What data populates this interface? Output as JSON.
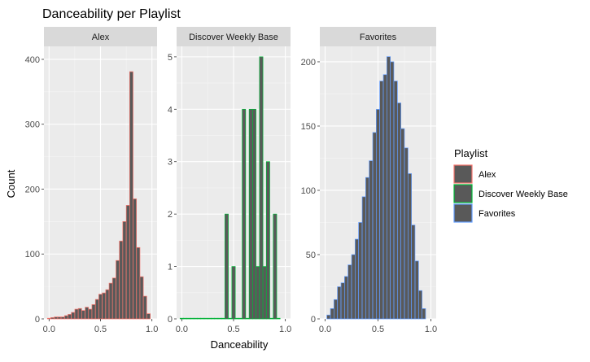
{
  "chart_data": {
    "type": "bar",
    "title": "Danceability per Playlist",
    "xlabel": "Danceability",
    "ylabel": "Count",
    "legend": {
      "title": "Playlist",
      "position": "right",
      "entries": [
        {
          "name": "Alex",
          "color": "#F8766D"
        },
        {
          "name": "Discover Weekly Base",
          "color": "#00BA38"
        },
        {
          "name": "Favorites",
          "color": "#619CFF"
        }
      ]
    },
    "bar_fill": "#595959",
    "bin_width": 0.033,
    "x_ticks": [
      "0.0",
      "0.5",
      "1.0"
    ],
    "x_tick_values": [
      0,
      0.5,
      1
    ],
    "facets": [
      {
        "name": "Alex",
        "color": "#F8766D",
        "ylim": [
          0,
          420
        ],
        "yticks": [
          0,
          100,
          200,
          300,
          400
        ],
        "x": [
          0.0,
          0.033,
          0.067,
          0.1,
          0.133,
          0.167,
          0.2,
          0.233,
          0.267,
          0.3,
          0.333,
          0.367,
          0.4,
          0.433,
          0.467,
          0.5,
          0.533,
          0.567,
          0.6,
          0.633,
          0.667,
          0.7,
          0.733,
          0.767,
          0.8,
          0.833,
          0.867,
          0.9,
          0.933,
          0.967
        ],
        "values": [
          1,
          2,
          3,
          3,
          3,
          5,
          7,
          10,
          15,
          16,
          13,
          18,
          15,
          22,
          30,
          38,
          40,
          45,
          55,
          63,
          90,
          120,
          150,
          175,
          381,
          185,
          110,
          65,
          35,
          8
        ]
      },
      {
        "name": "Discover Weekly Base",
        "color": "#00BA38",
        "ylim": [
          0,
          5.2
        ],
        "yticks": [
          0,
          1,
          2,
          3,
          4,
          5
        ],
        "x": [
          0.0,
          0.033,
          0.067,
          0.1,
          0.133,
          0.167,
          0.2,
          0.233,
          0.267,
          0.3,
          0.333,
          0.367,
          0.4,
          0.433,
          0.467,
          0.5,
          0.533,
          0.567,
          0.6,
          0.633,
          0.667,
          0.7,
          0.733,
          0.767,
          0.8,
          0.833,
          0.867,
          0.9,
          0.933
        ],
        "values": [
          0,
          0,
          0,
          0,
          0,
          0,
          0,
          0,
          0,
          0,
          0,
          0,
          0,
          2,
          0,
          1,
          0,
          0,
          4,
          0,
          4,
          4,
          1,
          5,
          1,
          3,
          0,
          2,
          0
        ]
      },
      {
        "name": "Favorites",
        "color": "#619CFF",
        "ylim": [
          0,
          212
        ],
        "yticks": [
          0,
          50,
          100,
          150,
          200
        ],
        "x": [
          0.033,
          0.067,
          0.1,
          0.133,
          0.167,
          0.2,
          0.233,
          0.267,
          0.3,
          0.333,
          0.367,
          0.4,
          0.433,
          0.467,
          0.5,
          0.533,
          0.567,
          0.6,
          0.633,
          0.667,
          0.7,
          0.733,
          0.767,
          0.8,
          0.833,
          0.867,
          0.9,
          0.933
        ],
        "values": [
          3,
          8,
          15,
          25,
          28,
          33,
          42,
          50,
          62,
          75,
          95,
          110,
          123,
          145,
          163,
          185,
          190,
          204,
          200,
          185,
          168,
          148,
          133,
          113,
          73,
          45,
          22,
          8
        ]
      }
    ]
  }
}
